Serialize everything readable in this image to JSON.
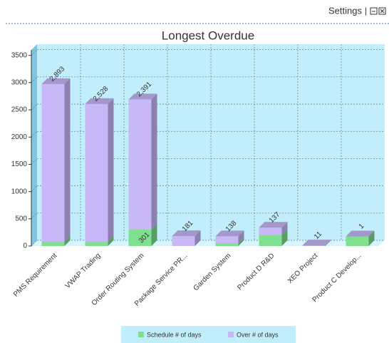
{
  "header": {
    "settings": "Settings"
  },
  "chart_data": {
    "type": "bar3d_stacked",
    "title": "Longest Overdue",
    "categories": [
      "PMS Requirement",
      "VWAP Trading",
      "Order Routing System",
      "Package Service PR...",
      "Garden System",
      "Product D R&D",
      "XEO Project",
      "Product C Develop..."
    ],
    "series": [
      {
        "name": "Schedule # of days",
        "color": "#7fe08f",
        "values": [
          80,
          80,
          301,
          0,
          40,
          200,
          0,
          175
        ],
        "value_labels": [
          null,
          null,
          "301",
          null,
          null,
          null,
          null,
          null
        ]
      },
      {
        "name": "Over # of days",
        "color": "#c8b8f8",
        "values": [
          2893,
          2528,
          2391,
          181,
          138,
          137,
          11,
          1
        ],
        "value_labels": [
          "2,893",
          "2,528",
          "2,391",
          "181",
          "138",
          "137",
          "11",
          "1"
        ]
      }
    ],
    "ylim": [
      0,
      3600
    ],
    "yticks": [
      0,
      500,
      1000,
      1500,
      2000,
      2500,
      3000,
      3500
    ],
    "grid": true
  }
}
